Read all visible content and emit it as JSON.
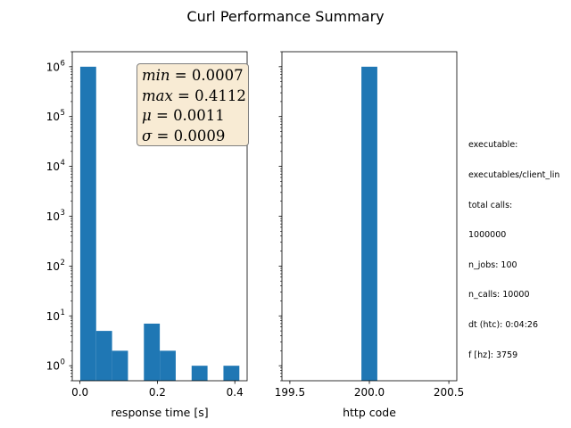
{
  "figure": {
    "title": "Curl Performance Summary",
    "stats": {
      "min": "0.0007",
      "max": "0.4112",
      "mu": "0.0011",
      "sigma": "0.0009"
    },
    "info_lines": [
      "executable:",
      "executables/client_lin",
      "total calls:",
      "1000000",
      "n_jobs: 100",
      "n_calls: 10000",
      "dt (htc): 0:04:26",
      "f [hz]: 3759"
    ],
    "bar_color": "#1f77b4",
    "statbox_color": "#f8ebd4"
  },
  "chart_data": [
    {
      "type": "bar",
      "xlabel": "response time [s]",
      "ylabel": "",
      "yscale": "log",
      "xlim": [
        -0.0199,
        0.4318
      ],
      "ylim": [
        0.5,
        2000000
      ],
      "xticks": [
        0.0,
        0.2,
        0.4
      ],
      "xtick_labels": [
        "0.0",
        "0.2",
        "0.4"
      ],
      "yticks": [
        1,
        10,
        100,
        1000,
        10000,
        100000,
        1000000
      ],
      "ytick_labels": [
        "10",
        "10",
        "10",
        "10",
        "10",
        "10",
        "10"
      ],
      "ytick_exponents": [
        "0",
        "1",
        "2",
        "3",
        "4",
        "5",
        "6"
      ],
      "bin_edges": [
        0.0007,
        0.0418,
        0.0829,
        0.124,
        0.1651,
        0.2062,
        0.2473,
        0.2884,
        0.3295,
        0.3706,
        0.4117
      ],
      "values": [
        999983,
        5,
        2,
        0,
        7,
        2,
        0,
        1,
        0,
        1
      ],
      "grid": false
    },
    {
      "type": "bar",
      "xlabel": "http code",
      "ylabel": "",
      "yscale": "log",
      "xlim": [
        199.45,
        200.55
      ],
      "ylim": [
        0.5,
        2000000
      ],
      "xticks": [
        199.5,
        200.0,
        200.5
      ],
      "xtick_labels": [
        "199.5",
        "200.0",
        "200.5"
      ],
      "bin_edges": [
        199.95,
        200.05
      ],
      "values": [
        1000000
      ],
      "grid": false
    }
  ]
}
